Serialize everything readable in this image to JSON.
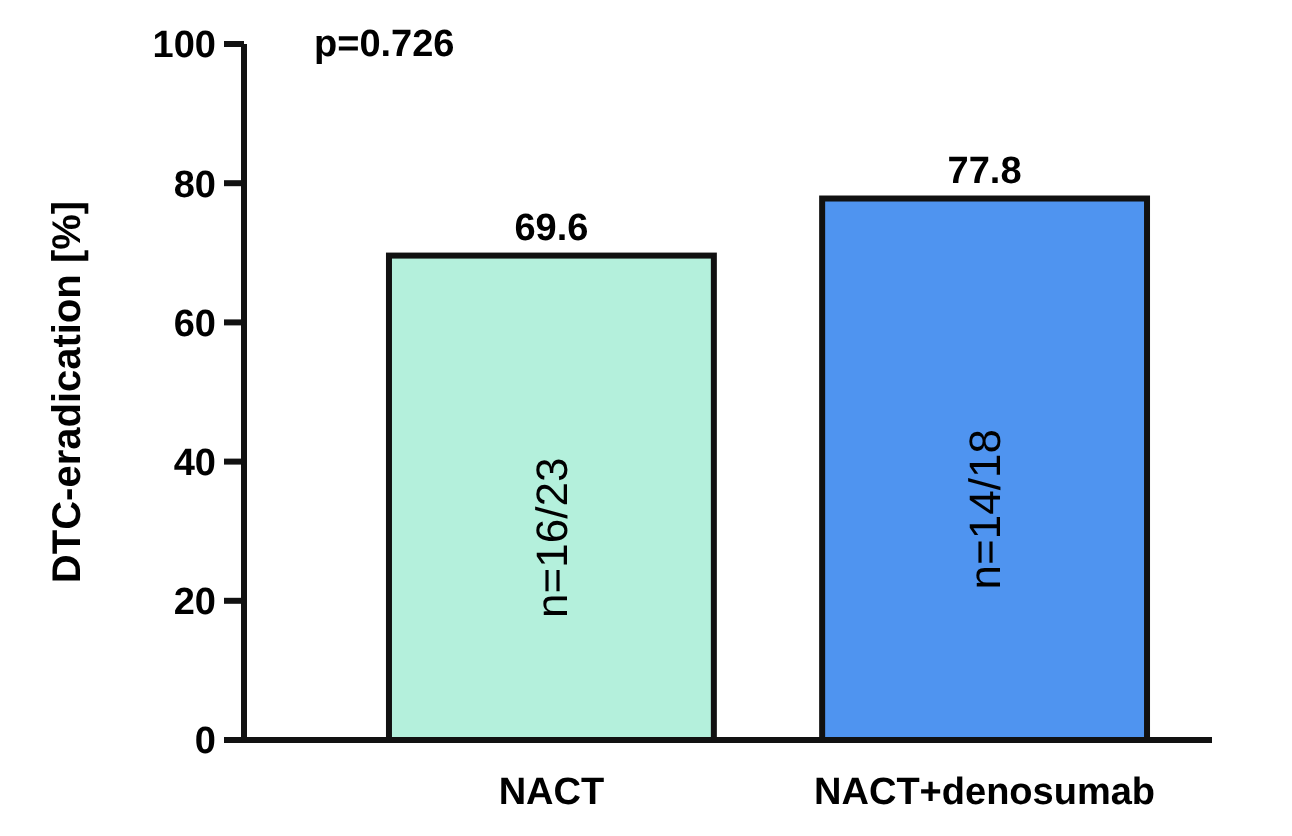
{
  "chart_data": {
    "type": "bar",
    "ylabel": "DTC-eradication [%]",
    "categories": [
      "NACT",
      "NACT+denosumab"
    ],
    "values": [
      69.6,
      77.8
    ],
    "colors": [
      "#b4f0dc",
      "#4f94f0"
    ],
    "ylim": [
      0,
      100
    ],
    "yticks": [
      0,
      20,
      40,
      60,
      80,
      100
    ],
    "grid": false,
    "data_labels": true,
    "annotations": [
      "p=0.726",
      "n=16/23",
      "n=14/18"
    ]
  }
}
